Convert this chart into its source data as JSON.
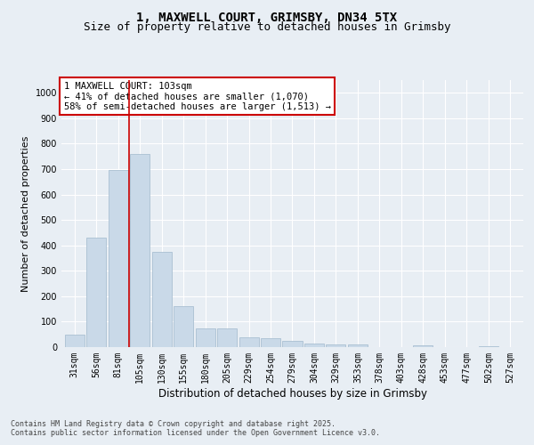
{
  "title1": "1, MAXWELL COURT, GRIMSBY, DN34 5TX",
  "title2": "Size of property relative to detached houses in Grimsby",
  "xlabel": "Distribution of detached houses by size in Grimsby",
  "ylabel": "Number of detached properties",
  "categories": [
    "31sqm",
    "56sqm",
    "81sqm",
    "105sqm",
    "130sqm",
    "155sqm",
    "180sqm",
    "205sqm",
    "229sqm",
    "254sqm",
    "279sqm",
    "304sqm",
    "329sqm",
    "353sqm",
    "378sqm",
    "403sqm",
    "428sqm",
    "453sqm",
    "477sqm",
    "502sqm",
    "527sqm"
  ],
  "values": [
    50,
    430,
    695,
    760,
    375,
    160,
    75,
    75,
    38,
    35,
    25,
    15,
    12,
    10,
    0,
    0,
    7,
    0,
    0,
    5,
    0
  ],
  "bar_color": "#c9d9e8",
  "bar_edge_color": "#a0b8cc",
  "annotation_text": "1 MAXWELL COURT: 103sqm\n← 41% of detached houses are smaller (1,070)\n58% of semi-detached houses are larger (1,513) →",
  "annotation_box_color": "#ffffff",
  "annotation_box_edge": "#cc0000",
  "vline_color": "#cc0000",
  "ylim": [
    0,
    1050
  ],
  "yticks": [
    0,
    100,
    200,
    300,
    400,
    500,
    600,
    700,
    800,
    900,
    1000
  ],
  "background_color": "#e8eef4",
  "plot_bg_color": "#e8eef4",
  "footer1": "Contains HM Land Registry data © Crown copyright and database right 2025.",
  "footer2": "Contains public sector information licensed under the Open Government Licence v3.0.",
  "title_fontsize": 10,
  "subtitle_fontsize": 9,
  "tick_fontsize": 7,
  "ylabel_fontsize": 8,
  "xlabel_fontsize": 8.5,
  "annotation_fontsize": 7.5,
  "footer_fontsize": 6
}
